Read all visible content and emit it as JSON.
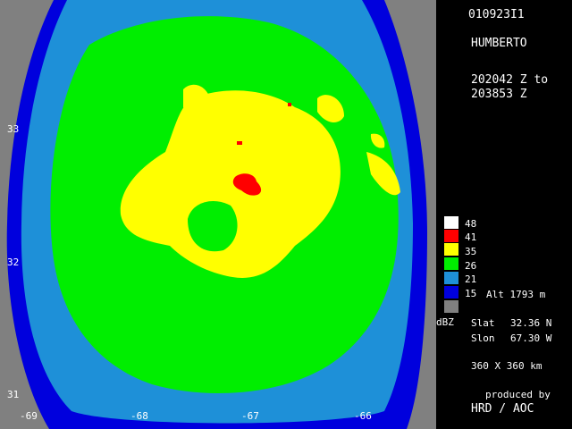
{
  "header": {
    "flight_id": "010923I1",
    "storm_name": "HUMBERTO",
    "time_start": "202042 Z to",
    "time_end": "203853 Z"
  },
  "axes": {
    "lat_ticks": [
      "33",
      "32",
      "31"
    ],
    "lon_ticks": [
      "-69",
      "-68",
      "-67",
      "-66"
    ]
  },
  "legend": {
    "unit": "dBZ",
    "levels": [
      {
        "value": "48",
        "color": "#ffffff"
      },
      {
        "value": "41",
        "color": "#ff0000"
      },
      {
        "value": "35",
        "color": "#ffff00"
      },
      {
        "value": "26",
        "color": "#00ee00"
      },
      {
        "value": "21",
        "color": "#1e90d8"
      },
      {
        "value": "15",
        "color": "#0000dd"
      },
      {
        "value": "",
        "color": "#808080"
      }
    ],
    "altitude": "Alt   1793 m"
  },
  "info": {
    "slat_label": "Slat",
    "slat_value": "32.36 N",
    "slon_label": "Slon",
    "slon_value": "67.30 W",
    "domain": "360 X 360 km",
    "produced_by": "produced by",
    "producer": "HRD / AOC"
  },
  "colors": {
    "background_outside": "#808080",
    "no_echo": "#000000"
  }
}
